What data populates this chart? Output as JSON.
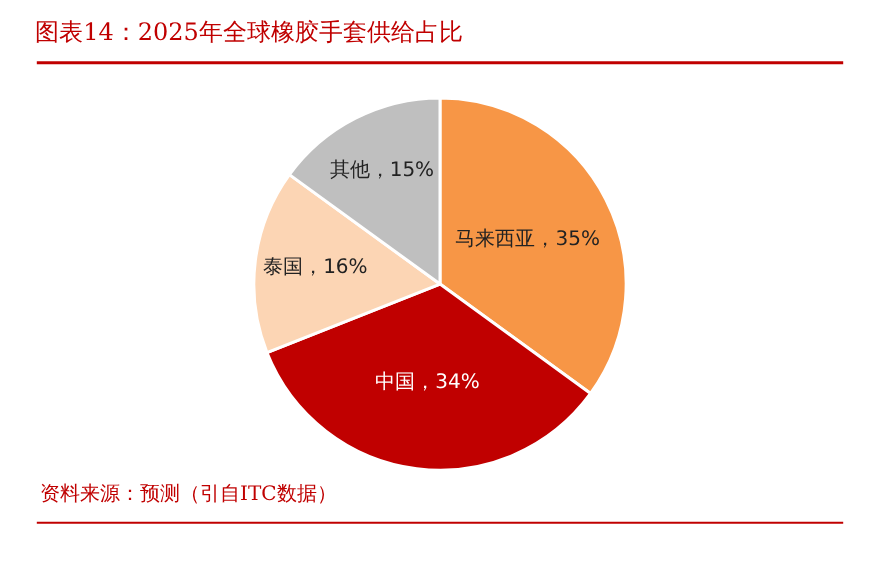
{
  "chart_data": {
    "type": "pie",
    "title": "图表14：2025年全球橡胶手套供给占比",
    "categories": [
      "马来西亚",
      "中国",
      "泰国",
      "其他"
    ],
    "values": [
      35,
      34,
      16,
      15
    ],
    "colors": [
      "#f79646",
      "#c00000",
      "#fcd5b4",
      "#bfbfbf"
    ],
    "value_labels": [
      "35%",
      "34%",
      "16%",
      "15%"
    ],
    "legend": false,
    "annotations": [
      "资料来源：预测（引自ITC数据）"
    ]
  }
}
